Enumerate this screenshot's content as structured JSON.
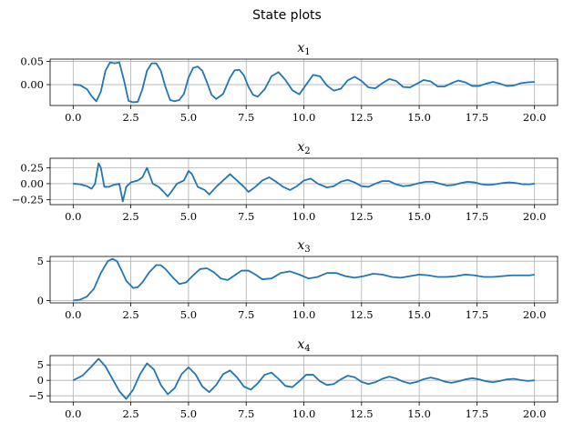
{
  "figure": {
    "title": "State plots",
    "line_color": "#1f77b4"
  },
  "chart_data": [
    {
      "type": "line",
      "title": "x",
      "title_sub": "1",
      "xlim": [
        -1.0,
        21.0
      ],
      "ylim": [
        -0.045,
        0.055
      ],
      "xticks": [
        0.0,
        2.5,
        5.0,
        7.5,
        10.0,
        12.5,
        15.0,
        17.5,
        20.0
      ],
      "xtick_labels": [
        "0.0",
        "2.5",
        "5.0",
        "7.5",
        "10.0",
        "12.5",
        "15.0",
        "17.5",
        "20.0"
      ],
      "yticks": [
        0.0,
        0.05
      ],
      "ytick_labels": [
        "0.00",
        "0.05"
      ],
      "grid": true,
      "series": [
        {
          "x": [
            0,
            0.3,
            0.6,
            0.8,
            1.0,
            1.2,
            1.4,
            1.6,
            1.8,
            2.0,
            2.2,
            2.4,
            2.6,
            2.8,
            3.0,
            3.2,
            3.4,
            3.6,
            3.8,
            4.0,
            4.2,
            4.4,
            4.6,
            4.8,
            5.0,
            5.2,
            5.4,
            5.6,
            5.8,
            6.0,
            6.2,
            6.5,
            6.8,
            7.0,
            7.2,
            7.4,
            7.6,
            7.8,
            8.0,
            8.3,
            8.6,
            8.9,
            9.2,
            9.5,
            9.8,
            10.1,
            10.4,
            10.7,
            11.0,
            11.3,
            11.6,
            11.9,
            12.2,
            12.5,
            12.8,
            13.1,
            13.4,
            13.7,
            14.0,
            14.3,
            14.6,
            14.9,
            15.2,
            15.5,
            15.8,
            16.1,
            16.4,
            16.7,
            17.0,
            17.3,
            17.6,
            17.9,
            18.2,
            18.5,
            18.8,
            19.1,
            19.4,
            19.7,
            20.0
          ],
          "y": [
            0,
            -0.001,
            -0.01,
            -0.025,
            -0.036,
            -0.015,
            0.03,
            0.048,
            0.046,
            0.048,
            0.01,
            -0.035,
            -0.038,
            -0.037,
            -0.01,
            0.03,
            0.046,
            0.046,
            0.03,
            -0.005,
            -0.033,
            -0.036,
            -0.033,
            -0.02,
            0.015,
            0.036,
            0.039,
            0.03,
            0.005,
            -0.022,
            -0.031,
            -0.02,
            0.015,
            0.031,
            0.032,
            0.02,
            -0.005,
            -0.022,
            -0.026,
            -0.01,
            0.018,
            0.027,
            0.01,
            -0.012,
            -0.021,
            0.0,
            0.021,
            0.018,
            -0.002,
            -0.013,
            -0.009,
            0.009,
            0.017,
            0.008,
            -0.006,
            -0.008,
            0.003,
            0.012,
            0.008,
            -0.005,
            -0.006,
            0.002,
            0.01,
            0.007,
            -0.004,
            -0.004,
            0.003,
            0.009,
            0.005,
            -0.003,
            -0.003,
            0.002,
            0.006,
            0.002,
            -0.003,
            -0.002,
            0.003,
            0.005,
            0.006
          ]
        }
      ]
    },
    {
      "type": "line",
      "title": "x",
      "title_sub": "2",
      "xlim": [
        -1.0,
        21.0
      ],
      "ylim": [
        -0.33,
        0.4
      ],
      "xticks": [
        0.0,
        2.5,
        5.0,
        7.5,
        10.0,
        12.5,
        15.0,
        17.5,
        20.0
      ],
      "xtick_labels": [
        "0.0",
        "2.5",
        "5.0",
        "7.5",
        "10.0",
        "12.5",
        "15.0",
        "17.5",
        "20.0"
      ],
      "yticks": [
        -0.25,
        0.0,
        0.25
      ],
      "ytick_labels": [
        "−0.25",
        "0.00",
        "0.25"
      ],
      "grid": true,
      "series": [
        {
          "x": [
            0,
            0.3,
            0.6,
            0.8,
            0.95,
            1.1,
            1.2,
            1.35,
            1.55,
            1.75,
            2.0,
            2.15,
            2.3,
            2.5,
            2.8,
            3.0,
            3.2,
            3.3,
            3.45,
            3.7,
            3.9,
            4.1,
            4.25,
            4.5,
            4.8,
            5.0,
            5.15,
            5.4,
            5.7,
            5.9,
            6.2,
            6.5,
            6.8,
            7.1,
            7.4,
            7.6,
            7.9,
            8.2,
            8.5,
            8.8,
            9.1,
            9.4,
            9.7,
            10.0,
            10.3,
            10.6,
            11.0,
            11.3,
            11.6,
            11.9,
            12.2,
            12.5,
            12.8,
            13.1,
            13.4,
            13.7,
            14.0,
            14.3,
            14.6,
            15.0,
            15.3,
            15.6,
            15.9,
            16.2,
            16.5,
            16.8,
            17.1,
            17.4,
            17.7,
            18.0,
            18.3,
            18.6,
            18.9,
            19.2,
            19.5,
            19.8,
            20.0
          ],
          "y": [
            0,
            -0.01,
            -0.04,
            -0.08,
            0.0,
            0.32,
            0.25,
            -0.05,
            -0.05,
            -0.02,
            0.0,
            -0.28,
            -0.05,
            0.02,
            0.05,
            0.1,
            0.25,
            0.15,
            0.0,
            -0.05,
            -0.12,
            -0.2,
            -0.13,
            0.0,
            0.05,
            0.2,
            0.15,
            -0.05,
            -0.1,
            -0.17,
            -0.05,
            0.05,
            0.15,
            0.05,
            -0.05,
            -0.13,
            -0.05,
            0.05,
            0.1,
            0.03,
            -0.05,
            -0.1,
            -0.04,
            0.05,
            0.08,
            0.0,
            -0.06,
            -0.04,
            0.03,
            0.06,
            0.02,
            -0.04,
            -0.05,
            0.0,
            0.04,
            0.04,
            -0.01,
            -0.04,
            -0.03,
            0.01,
            0.03,
            0.03,
            0.0,
            -0.03,
            -0.02,
            0.01,
            0.03,
            0.02,
            -0.01,
            -0.02,
            -0.01,
            0.01,
            0.02,
            0.01,
            -0.01,
            -0.01,
            0.0
          ]
        }
      ]
    },
    {
      "type": "line",
      "title": "x",
      "title_sub": "3",
      "xlim": [
        -1.0,
        21.0
      ],
      "ylim": [
        -0.3,
        5.6
      ],
      "xticks": [
        0.0,
        2.5,
        5.0,
        7.5,
        10.0,
        12.5,
        15.0,
        17.5,
        20.0
      ],
      "xtick_labels": [
        "0.0",
        "2.5",
        "5.0",
        "7.5",
        "10.0",
        "12.5",
        "15.0",
        "17.5",
        "20.0"
      ],
      "yticks": [
        0,
        5
      ],
      "ytick_labels": [
        "0",
        "5"
      ],
      "grid": true,
      "series": [
        {
          "x": [
            0,
            0.3,
            0.6,
            0.9,
            1.2,
            1.5,
            1.7,
            1.9,
            2.1,
            2.3,
            2.6,
            2.8,
            3.0,
            3.3,
            3.6,
            3.8,
            4.0,
            4.3,
            4.6,
            4.9,
            5.2,
            5.5,
            5.8,
            6.1,
            6.4,
            6.7,
            7.0,
            7.3,
            7.6,
            7.9,
            8.2,
            8.6,
            9.0,
            9.4,
            9.8,
            10.2,
            10.6,
            11.0,
            11.4,
            11.8,
            12.2,
            12.6,
            13.0,
            13.4,
            13.8,
            14.2,
            14.6,
            15.0,
            15.4,
            15.8,
            16.2,
            16.6,
            17.0,
            17.4,
            17.8,
            18.2,
            18.6,
            19.0,
            19.4,
            19.8,
            20.0
          ],
          "y": [
            0.0,
            0.1,
            0.5,
            1.5,
            3.5,
            5.0,
            5.3,
            5.0,
            3.8,
            2.5,
            1.6,
            1.7,
            2.3,
            3.6,
            4.5,
            4.5,
            4.0,
            3.0,
            2.1,
            2.3,
            3.2,
            4.0,
            4.1,
            3.6,
            2.8,
            2.6,
            3.2,
            3.8,
            3.8,
            3.3,
            2.7,
            2.8,
            3.5,
            3.7,
            3.3,
            2.8,
            3.0,
            3.5,
            3.5,
            3.1,
            2.9,
            3.1,
            3.4,
            3.3,
            3.0,
            2.9,
            3.1,
            3.3,
            3.2,
            3.0,
            3.0,
            3.1,
            3.3,
            3.2,
            3.0,
            3.0,
            3.1,
            3.2,
            3.2,
            3.2,
            3.3
          ]
        }
      ]
    },
    {
      "type": "line",
      "title": "x",
      "title_sub": "4",
      "xlim": [
        -1.0,
        21.0
      ],
      "ylim": [
        -7.0,
        8.0
      ],
      "xticks": [
        0.0,
        2.5,
        5.0,
        7.5,
        10.0,
        12.5,
        15.0,
        17.5,
        20.0
      ],
      "xtick_labels": [
        "0.0",
        "2.5",
        "5.0",
        "7.5",
        "10.0",
        "12.5",
        "15.0",
        "17.5",
        "20.0"
      ],
      "yticks": [
        -5,
        0,
        5
      ],
      "ytick_labels": [
        "−5",
        "0",
        "5"
      ],
      "grid": true,
      "series": [
        {
          "x": [
            0,
            0.4,
            0.8,
            1.1,
            1.4,
            1.7,
            2.0,
            2.3,
            2.6,
            2.9,
            3.2,
            3.5,
            3.8,
            4.1,
            4.4,
            4.7,
            5.0,
            5.3,
            5.6,
            5.9,
            6.2,
            6.5,
            6.8,
            7.1,
            7.4,
            7.7,
            8.0,
            8.3,
            8.6,
            8.9,
            9.2,
            9.5,
            9.8,
            10.1,
            10.4,
            10.7,
            11.0,
            11.3,
            11.6,
            11.9,
            12.2,
            12.5,
            12.8,
            13.1,
            13.4,
            13.7,
            14.0,
            14.3,
            14.6,
            14.9,
            15.2,
            15.5,
            15.8,
            16.1,
            16.4,
            16.7,
            17.0,
            17.3,
            17.6,
            17.9,
            18.2,
            18.5,
            18.8,
            19.1,
            19.4,
            19.7,
            20.0
          ],
          "y": [
            0,
            1.5,
            4.5,
            7.0,
            4.5,
            0.5,
            -3.5,
            -6.0,
            -3.0,
            2.0,
            5.5,
            3.5,
            -1.5,
            -4.5,
            -2.5,
            2.0,
            4.2,
            2.0,
            -2.0,
            -3.8,
            -1.5,
            2.0,
            3.2,
            1.0,
            -2.0,
            -3.0,
            -1.0,
            1.8,
            2.5,
            0.5,
            -1.8,
            -2.2,
            -0.3,
            1.8,
            1.8,
            -0.3,
            -1.5,
            -1.2,
            0.3,
            1.5,
            1.0,
            -0.5,
            -1.2,
            -0.6,
            0.5,
            1.2,
            0.6,
            -0.4,
            -1.0,
            -0.5,
            0.4,
            0.9,
            0.4,
            -0.4,
            -0.8,
            -0.3,
            0.3,
            0.7,
            0.3,
            -0.3,
            -0.6,
            -0.2,
            0.3,
            0.5,
            0.1,
            -0.2,
            0.0
          ]
        }
      ]
    }
  ]
}
